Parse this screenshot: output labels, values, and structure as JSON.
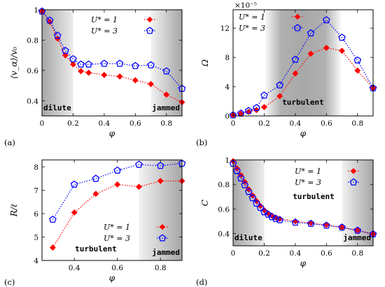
{
  "chart_data": [
    {
      "id": "a",
      "type": "line",
      "panel_label": "(a)",
      "xlabel": "φ",
      "ylabel": "⟨v_α⟩/v₀",
      "xlim": [
        0,
        0.9
      ],
      "ylim": [
        0.3,
        1.0
      ],
      "xticks": [
        0,
        0.2,
        0.4,
        0.6,
        0.8
      ],
      "xtick_labels": [
        "0",
        "0.2",
        "0.4",
        "0.6",
        "0.8"
      ],
      "yticks": [
        0.4,
        0.6,
        0.8,
        1.0
      ],
      "ytick_labels": [
        "0.4",
        "0.6",
        "0.8",
        "1"
      ],
      "shading": [
        {
          "from": 0,
          "to": 0.2,
          "side": "left",
          "label": "dilute"
        },
        {
          "from": 0.7,
          "to": 0.9,
          "side": "right",
          "label": "jammed"
        }
      ],
      "legend_position": "top-right",
      "series": [
        {
          "name": "U* = 1",
          "color": "#ff0000",
          "marker": "diamond",
          "line": "dotted",
          "x": [
            0,
            0.05,
            0.1,
            0.15,
            0.2,
            0.25,
            0.3,
            0.4,
            0.5,
            0.6,
            0.7,
            0.8,
            0.9
          ],
          "y": [
            0.99,
            0.92,
            0.81,
            0.7,
            0.64,
            0.595,
            0.585,
            0.57,
            0.56,
            0.535,
            0.51,
            0.44,
            0.39
          ]
        },
        {
          "name": "U* = 3",
          "color": "#0000ff",
          "marker": "pentagon",
          "line": "dotted",
          "x": [
            0,
            0.05,
            0.1,
            0.15,
            0.2,
            0.25,
            0.3,
            0.4,
            0.5,
            0.6,
            0.7,
            0.8,
            0.9
          ],
          "y": [
            0.99,
            0.93,
            0.83,
            0.73,
            0.675,
            0.64,
            0.64,
            0.645,
            0.645,
            0.63,
            0.635,
            0.595,
            0.48
          ]
        }
      ]
    },
    {
      "id": "b",
      "type": "line",
      "panel_label": "(b)",
      "xlabel": "φ",
      "ylabel": "Ω",
      "scale_note": "×10⁻⁵",
      "xlim": [
        0,
        0.9
      ],
      "ylim": [
        0,
        14.5
      ],
      "xticks": [
        0,
        0.2,
        0.4,
        0.6,
        0.8
      ],
      "xtick_labels": [
        "0",
        "0.2",
        "0.4",
        "0.6",
        "0.8"
      ],
      "yticks": [
        0,
        4,
        8,
        12
      ],
      "ytick_labels": [
        "0",
        "4",
        "8",
        "12"
      ],
      "shading": [
        {
          "from": 0.2,
          "to": 0.7,
          "side": "center",
          "label": "turbulent"
        }
      ],
      "legend_position": "top-left",
      "series": [
        {
          "name": "U* = 1",
          "color": "#ff0000",
          "marker": "diamond",
          "line": "dotted",
          "x": [
            0,
            0.05,
            0.1,
            0.15,
            0.2,
            0.3,
            0.4,
            0.5,
            0.6,
            0.7,
            0.8,
            0.9
          ],
          "y": [
            0.1,
            0.3,
            0.55,
            0.8,
            1.2,
            2.7,
            5.8,
            8.5,
            9.3,
            8.9,
            6.2,
            3.8
          ]
        },
        {
          "name": "U* = 3",
          "color": "#0000ff",
          "marker": "pentagon",
          "line": "dotted",
          "x": [
            0,
            0.05,
            0.1,
            0.15,
            0.2,
            0.3,
            0.4,
            0.5,
            0.6,
            0.7,
            0.8,
            0.9
          ],
          "y": [
            0.1,
            0.35,
            0.7,
            1.1,
            2.8,
            4.2,
            7.7,
            11.3,
            13.1,
            10.7,
            7.6,
            3.8
          ]
        }
      ]
    },
    {
      "id": "c",
      "type": "line",
      "panel_label": "(c)",
      "xlabel": "φ",
      "ylabel": "R/ℓ",
      "xlim": [
        0.25,
        0.9
      ],
      "ylim": [
        4,
        8.3
      ],
      "xticks": [
        0.4,
        0.6,
        0.8
      ],
      "xtick_labels": [
        "0.4",
        "0.6",
        "0.8"
      ],
      "yticks": [
        4,
        5,
        6,
        7,
        8
      ],
      "ytick_labels": [
        "4",
        "5",
        "6",
        "7",
        "8"
      ],
      "shading": [
        {
          "from": 0.7,
          "to": 0.9,
          "side": "right",
          "label": "jammed"
        }
      ],
      "region_labels": [
        {
          "text": "turbulent"
        }
      ],
      "legend_position": "bottom-right",
      "series": [
        {
          "name": "U* = 1",
          "color": "#ff0000",
          "marker": "diamond",
          "line": "dotted",
          "x": [
            0.3,
            0.4,
            0.5,
            0.6,
            0.7,
            0.8,
            0.9
          ],
          "y": [
            4.55,
            6.05,
            6.85,
            7.25,
            7.15,
            7.4,
            7.4
          ]
        },
        {
          "name": "U* = 3",
          "color": "#0000ff",
          "marker": "pentagon",
          "line": "dotted",
          "x": [
            0.3,
            0.4,
            0.5,
            0.6,
            0.7,
            0.8,
            0.9
          ],
          "y": [
            5.75,
            7.25,
            7.5,
            7.85,
            8.1,
            8.05,
            8.15
          ]
        }
      ]
    },
    {
      "id": "d",
      "type": "line",
      "panel_label": "(d)",
      "xlabel": "φ",
      "ylabel": "C",
      "xlim": [
        0,
        0.9
      ],
      "ylim": [
        0.3,
        1.0
      ],
      "xticks": [
        0,
        0.2,
        0.4,
        0.6,
        0.8
      ],
      "xtick_labels": [
        "0",
        "0.2",
        "0.4",
        "0.6",
        "0.8"
      ],
      "yticks": [
        0.4,
        0.6,
        0.8,
        1.0
      ],
      "ytick_labels": [
        "0.4",
        "0.6",
        "0.8",
        "1"
      ],
      "shading": [
        {
          "from": 0,
          "to": 0.2,
          "side": "left",
          "label": "dilute"
        },
        {
          "from": 0.7,
          "to": 0.9,
          "side": "right",
          "label": "jammed"
        }
      ],
      "region_labels": [
        {
          "text": "turbulent"
        }
      ],
      "legend_position": "top-right",
      "series": [
        {
          "name": "U* = 1",
          "color": "#ff0000",
          "marker": "diamond",
          "line": "dotted",
          "x": [
            0,
            0.025,
            0.05,
            0.075,
            0.1,
            0.125,
            0.15,
            0.175,
            0.2,
            0.225,
            0.25,
            0.275,
            0.3,
            0.4,
            0.5,
            0.6,
            0.7,
            0.8,
            0.9
          ],
          "y": [
            0.99,
            0.93,
            0.875,
            0.82,
            0.76,
            0.71,
            0.665,
            0.625,
            0.59,
            0.565,
            0.545,
            0.53,
            0.52,
            0.5,
            0.485,
            0.47,
            0.45,
            0.425,
            0.395
          ]
        },
        {
          "name": "U* = 3",
          "color": "#0000ff",
          "marker": "pentagon",
          "line": "dotted",
          "x": [
            0,
            0.025,
            0.05,
            0.075,
            0.1,
            0.125,
            0.15,
            0.175,
            0.2,
            0.225,
            0.25,
            0.275,
            0.3,
            0.4,
            0.5,
            0.6,
            0.7,
            0.8,
            0.9
          ],
          "y": [
            0.97,
            0.91,
            0.85,
            0.795,
            0.74,
            0.69,
            0.645,
            0.61,
            0.575,
            0.555,
            0.535,
            0.52,
            0.51,
            0.49,
            0.48,
            0.465,
            0.45,
            0.425,
            0.395
          ]
        }
      ]
    }
  ]
}
